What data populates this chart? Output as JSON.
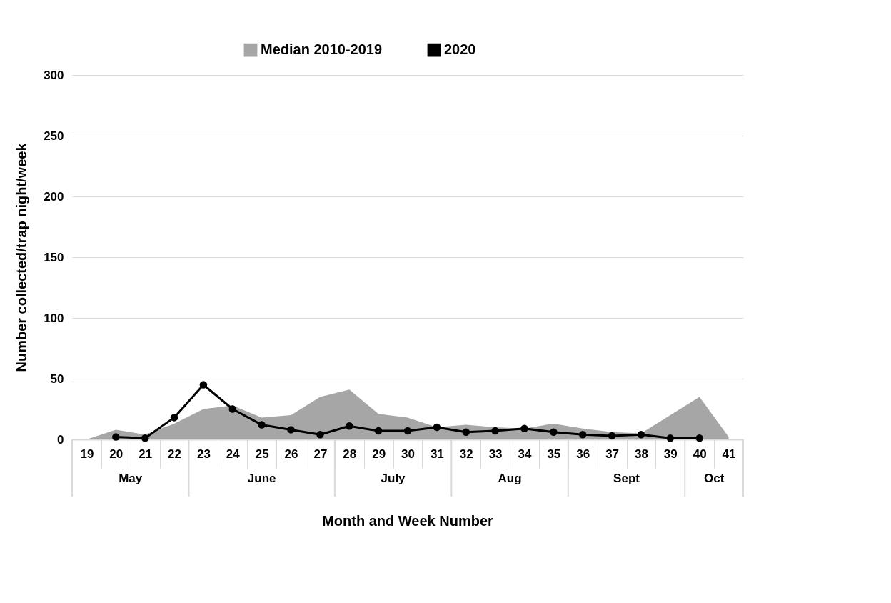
{
  "chart_data": {
    "type": "area",
    "xlabel": "Month and Week Number",
    "ylabel": "Number collected/trap night/week",
    "categories": [
      "19",
      "20",
      "21",
      "22",
      "23",
      "24",
      "25",
      "26",
      "27",
      "28",
      "29",
      "30",
      "31",
      "32",
      "33",
      "34",
      "35",
      "36",
      "37",
      "38",
      "39",
      "40",
      "41"
    ],
    "series": [
      {
        "name": "Median 2010-2019",
        "color": "#a6a6a6",
        "values": [
          0,
          8,
          4,
          13,
          25,
          28,
          18,
          20,
          35,
          41,
          21,
          18,
          10,
          12,
          10,
          9,
          13,
          9,
          6,
          5,
          20,
          35,
          2
        ]
      },
      {
        "name": "2020",
        "type": "line",
        "color": "#000000",
        "marker": "circle",
        "values": [
          null,
          2,
          1,
          18,
          45,
          25,
          12,
          8,
          4,
          11,
          7,
          7,
          10,
          6,
          7,
          9,
          6,
          4,
          3,
          4,
          1,
          1,
          null
        ]
      }
    ],
    "ylim": [
      0,
      300
    ],
    "yticks": [
      0,
      50,
      100,
      150,
      200,
      250,
      300
    ],
    "grid": "y",
    "legend": "top",
    "annotations": [
      "May",
      "June",
      "July",
      "Aug",
      "Sept",
      "Oct"
    ]
  }
}
